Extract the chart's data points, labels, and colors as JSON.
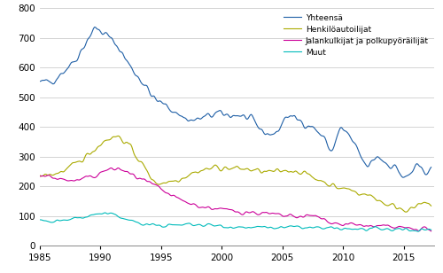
{
  "series": {
    "Yhteensä": {
      "color": "#1F5FA6"
    },
    "Henkilöautoilijat": {
      "color": "#AAAA00"
    },
    "Jalankulkijat ja polkupyöräilijät": {
      "color": "#CC0099"
    },
    "Muut": {
      "color": "#00BBBB"
    }
  },
  "xlim": [
    1985.0,
    2017.5
  ],
  "ylim": [
    0,
    800
  ],
  "yticks": [
    0,
    100,
    200,
    300,
    400,
    500,
    600,
    700,
    800
  ],
  "xticks": [
    1985,
    1990,
    1995,
    2000,
    2005,
    2010,
    2015
  ],
  "background_color": "#ffffff",
  "grid_color": "#cccccc",
  "figsize": [
    5.0,
    3.08
  ],
  "dpi": 100
}
